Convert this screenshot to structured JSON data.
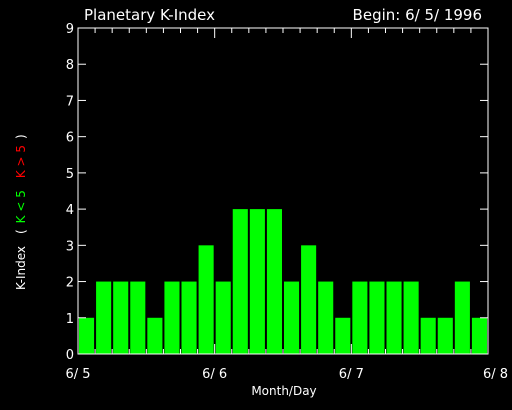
{
  "chart_data": {
    "type": "bar",
    "title": "Planetary K-Index",
    "begin_label": "Begin: 6/ 5/ 1996",
    "xlabel": "Month/Day",
    "ylabel": {
      "main": "K-Index",
      "open_paren": "(",
      "low_label": "K < 5",
      "high_label": "K > 5",
      "close_paren": ")"
    },
    "x_tick_labels": [
      "6/ 5",
      "6/ 6",
      "6/ 7",
      "6/ 8"
    ],
    "y_ticks": [
      0,
      1,
      2,
      3,
      4,
      5,
      6,
      7,
      8,
      9
    ],
    "ylim": [
      0,
      9
    ],
    "x_range_days": 3,
    "bars_per_day": 8,
    "values": [
      1,
      2,
      2,
      2,
      1,
      2,
      2,
      3,
      2,
      4,
      4,
      4,
      2,
      3,
      2,
      1,
      2,
      2,
      2,
      2,
      1,
      1,
      2,
      1
    ],
    "colors": {
      "low": "#00ff00",
      "high": "#ff0000",
      "axis": "#ffffff",
      "background": "#000000"
    },
    "threshold": 5
  }
}
